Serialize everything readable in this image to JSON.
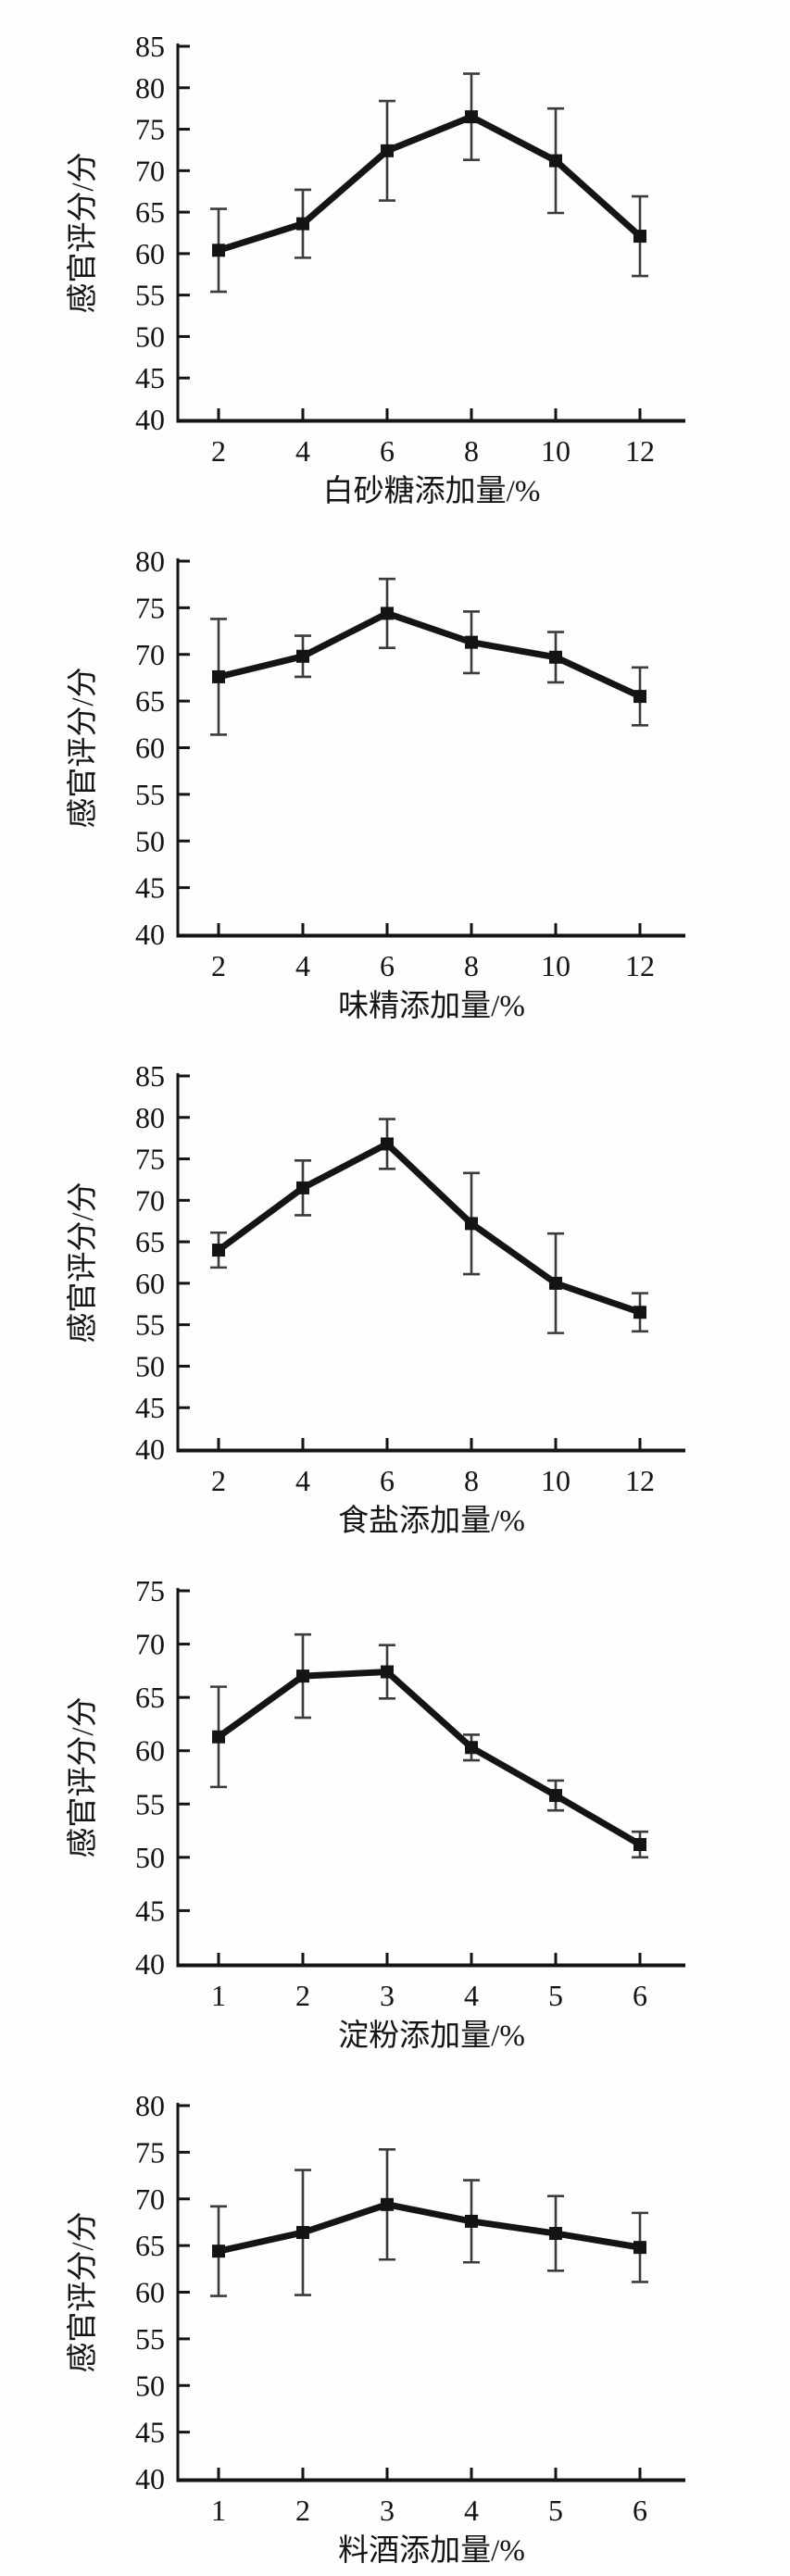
{
  "page": {
    "background": "#fdfdfc",
    "ink_color": "#141414",
    "error_bar_color": "#3c3c3c"
  },
  "y_axis_label": "感官评分/分",
  "chart_data": [
    {
      "type": "line",
      "marker": "square",
      "xlabel": "白砂糖添加量/%",
      "ylabel": "感官评分/分",
      "x": [
        2,
        4,
        6,
        8,
        10,
        12
      ],
      "values": [
        60.4,
        63.6,
        72.4,
        76.5,
        71.2,
        62.1
      ],
      "errors": [
        5.0,
        4.1,
        6.0,
        5.2,
        6.3,
        4.8
      ],
      "ylim": [
        40,
        85
      ],
      "ytick_step": 5,
      "grid": false,
      "legend": "none",
      "error_bars": true
    },
    {
      "type": "line",
      "marker": "square",
      "xlabel": "味精添加量/%",
      "ylabel": "感官评分/分",
      "x": [
        2,
        4,
        6,
        8,
        10,
        12
      ],
      "values": [
        67.6,
        69.8,
        74.4,
        71.3,
        69.7,
        65.5
      ],
      "errors": [
        6.2,
        2.2,
        3.7,
        3.3,
        2.7,
        3.1
      ],
      "ylim": [
        40,
        80
      ],
      "ytick_step": 5,
      "grid": false,
      "legend": "none",
      "error_bars": true
    },
    {
      "type": "line",
      "marker": "square",
      "xlabel": "食盐添加量/%",
      "ylabel": "感官评分/分",
      "x": [
        2,
        4,
        6,
        8,
        10,
        12
      ],
      "values": [
        64.0,
        71.5,
        76.8,
        67.2,
        60.0,
        56.5
      ],
      "errors": [
        2.1,
        3.3,
        3.0,
        6.1,
        6.0,
        2.3
      ],
      "ylim": [
        40,
        85
      ],
      "ytick_step": 5,
      "grid": false,
      "legend": "none",
      "error_bars": true
    },
    {
      "type": "line",
      "marker": "square",
      "xlabel": "淀粉添加量/%",
      "ylabel": "感官评分/分",
      "x": [
        1,
        2,
        3,
        4,
        5,
        6
      ],
      "values": [
        61.3,
        67.0,
        67.4,
        60.3,
        55.8,
        51.2
      ],
      "errors": [
        4.7,
        3.9,
        2.5,
        1.2,
        1.4,
        1.2
      ],
      "ylim": [
        40,
        75
      ],
      "ytick_step": 5,
      "grid": false,
      "legend": "none",
      "error_bars": true
    },
    {
      "type": "line",
      "marker": "square",
      "xlabel": "料酒添加量/%",
      "ylabel": "感官评分/分",
      "x": [
        1,
        2,
        3,
        4,
        5,
        6
      ],
      "values": [
        64.4,
        66.4,
        69.4,
        67.6,
        66.3,
        64.8
      ],
      "errors": [
        4.8,
        6.7,
        5.9,
        4.4,
        4.0,
        3.7
      ],
      "ylim": [
        40,
        80
      ],
      "ytick_step": 5,
      "grid": false,
      "legend": "none",
      "error_bars": true
    }
  ]
}
